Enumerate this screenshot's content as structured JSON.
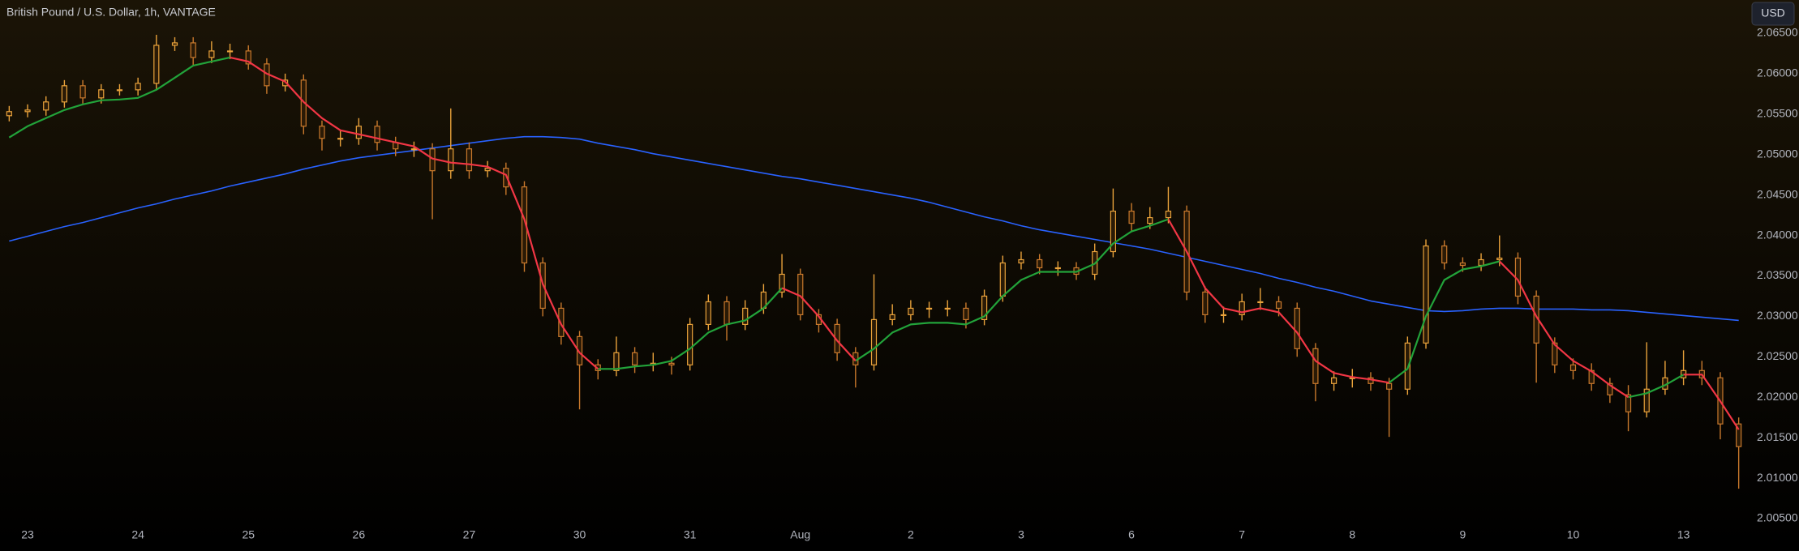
{
  "chart_data": {
    "type": "candlestick",
    "title": "British Pound / U.S. Dollar, 1h, VANTAGE",
    "currency_button": "USD",
    "categories": [
      null,
      "23",
      null,
      null,
      null,
      null,
      null,
      "24",
      null,
      null,
      null,
      null,
      null,
      "25",
      null,
      null,
      null,
      null,
      null,
      "26",
      null,
      null,
      null,
      null,
      null,
      "27",
      null,
      null,
      null,
      null,
      null,
      "30",
      null,
      null,
      null,
      null,
      null,
      "31",
      null,
      null,
      null,
      null,
      null,
      "Aug",
      null,
      null,
      null,
      null,
      null,
      "2",
      null,
      null,
      null,
      null,
      null,
      "3",
      null,
      null,
      null,
      null,
      null,
      "6",
      null,
      null,
      null,
      null,
      null,
      "7",
      null,
      null,
      null,
      null,
      null,
      "8",
      null,
      null,
      null,
      null,
      null,
      "9",
      null,
      null,
      null,
      null,
      null,
      "10",
      null,
      null,
      null,
      null,
      null,
      "13",
      null,
      null,
      null
    ],
    "open": [
      2.0548,
      2.0553,
      2.0555,
      2.0565,
      2.0585,
      2.057,
      2.058,
      2.058,
      2.0588,
      2.0635,
      2.0638,
      2.062,
      2.0628,
      2.0628,
      2.0612,
      2.0585,
      2.0592,
      2.0535,
      2.052,
      2.052,
      2.0535,
      2.0515,
      2.0507,
      2.0507,
      2.048,
      2.0507,
      2.048,
      2.0483,
      2.046,
      2.0366,
      2.031,
      2.0275,
      2.024,
      2.0233,
      2.0255,
      2.024,
      2.0242,
      2.024,
      2.029,
      2.0318,
      2.029,
      2.031,
      2.033,
      2.0352,
      2.0302,
      2.029,
      2.0255,
      2.024,
      2.0296,
      2.0302,
      2.031,
      2.031,
      2.031,
      2.0296,
      2.0325,
      2.0366,
      2.037,
      2.036,
      2.036,
      2.0352,
      2.038,
      2.043,
      2.0415,
      2.0422,
      2.043,
      2.033,
      2.0302,
      2.0302,
      2.0318,
      2.0318,
      2.031,
      2.026,
      2.0217,
      2.0224,
      2.0224,
      2.0217,
      2.021,
      2.0267,
      2.0387,
      2.0366,
      2.0363,
      2.037,
      2.0372,
      2.0325,
      2.0267,
      2.024,
      2.0233,
      2.0217,
      2.0203,
      2.0182,
      2.021,
      2.0224,
      2.0233,
      2.0224,
      2.0167
    ],
    "high": [
      2.056,
      2.0562,
      2.0572,
      2.0592,
      2.0592,
      2.0587,
      2.0587,
      2.0595,
      2.0648,
      2.0645,
      2.0645,
      2.064,
      2.0637,
      2.0635,
      2.0619,
      2.06,
      2.0599,
      2.0542,
      2.053,
      2.0545,
      2.0542,
      2.0522,
      2.0516,
      2.0514,
      2.0557,
      2.0515,
      2.0492,
      2.049,
      2.0467,
      2.0373,
      2.0317,
      2.0282,
      2.0247,
      2.0275,
      2.0262,
      2.0255,
      2.025,
      2.0298,
      2.0327,
      2.0325,
      2.032,
      2.034,
      2.0377,
      2.0359,
      2.0309,
      2.0297,
      2.0262,
      2.0352,
      2.0315,
      2.032,
      2.0318,
      2.032,
      2.0317,
      2.0333,
      2.0375,
      2.038,
      2.0377,
      2.0368,
      2.0367,
      2.039,
      2.0458,
      2.044,
      2.0435,
      2.046,
      2.0437,
      2.0337,
      2.0312,
      2.0328,
      2.0335,
      2.0325,
      2.0317,
      2.0267,
      2.0232,
      2.0235,
      2.0231,
      2.0224,
      2.0275,
      2.0395,
      2.0394,
      2.0373,
      2.0378,
      2.04,
      2.0379,
      2.0332,
      2.0274,
      2.0248,
      2.0242,
      2.0224,
      2.0215,
      2.0268,
      2.0245,
      2.0258,
      2.0245,
      2.0231,
      2.0175
    ],
    "low": [
      2.0541,
      2.0546,
      2.0548,
      2.0558,
      2.0563,
      2.0563,
      2.0573,
      2.0573,
      2.0581,
      2.0628,
      2.061,
      2.0613,
      2.0618,
      2.0605,
      2.0575,
      2.0578,
      2.0525,
      2.0505,
      2.051,
      2.0512,
      2.0505,
      2.0498,
      2.0497,
      2.042,
      2.047,
      2.047,
      2.0472,
      2.045,
      2.0355,
      2.03,
      2.0265,
      2.0185,
      2.0222,
      2.0226,
      2.023,
      2.0232,
      2.0228,
      2.0233,
      2.0283,
      2.027,
      2.0283,
      2.0303,
      2.0323,
      2.0295,
      2.028,
      2.0245,
      2.0212,
      2.0233,
      2.0289,
      2.0295,
      2.0298,
      2.03,
      2.0285,
      2.0289,
      2.0318,
      2.0358,
      2.0352,
      2.035,
      2.0345,
      2.0345,
      2.0373,
      2.0405,
      2.0408,
      2.0415,
      2.032,
      2.0292,
      2.0292,
      2.0295,
      2.0308,
      2.03,
      2.025,
      2.0195,
      2.0208,
      2.0212,
      2.0208,
      2.0151,
      2.0203,
      2.026,
      2.0358,
      2.0355,
      2.0356,
      2.0362,
      2.0315,
      2.0218,
      2.023,
      2.0222,
      2.0208,
      2.0193,
      2.0158,
      2.0175,
      2.0203,
      2.0215,
      2.0215,
      2.0148,
      2.0087
    ],
    "close": [
      2.0553,
      2.0555,
      2.0565,
      2.0585,
      2.057,
      2.058,
      2.058,
      2.0588,
      2.0635,
      2.0638,
      2.062,
      2.0628,
      2.0628,
      2.0612,
      2.0585,
      2.0592,
      2.0535,
      2.052,
      2.052,
      2.0535,
      2.0515,
      2.0507,
      2.0507,
      2.048,
      2.0507,
      2.048,
      2.0483,
      2.046,
      2.0366,
      2.031,
      2.0275,
      2.024,
      2.0233,
      2.0255,
      2.024,
      2.0242,
      2.024,
      2.029,
      2.0318,
      2.029,
      2.031,
      2.033,
      2.0352,
      2.0302,
      2.029,
      2.0255,
      2.024,
      2.0296,
      2.0302,
      2.031,
      2.031,
      2.031,
      2.0296,
      2.0325,
      2.0366,
      2.037,
      2.036,
      2.036,
      2.0352,
      2.038,
      2.043,
      2.0415,
      2.0422,
      2.043,
      2.033,
      2.0302,
      2.0302,
      2.0318,
      2.0318,
      2.031,
      2.026,
      2.0217,
      2.0224,
      2.0224,
      2.0217,
      2.021,
      2.0267,
      2.0387,
      2.0366,
      2.0363,
      2.037,
      2.0372,
      2.0325,
      2.0267,
      2.024,
      2.0233,
      2.0217,
      2.0203,
      2.0182,
      2.021,
      2.0224,
      2.0233,
      2.0224,
      2.0167,
      2.0139
    ],
    "up_color": "#e9a23b",
    "down_color": "#c9792c",
    "lines": [
      {
        "color": "#2962ff",
        "values": [
          2.0393,
          2.0399,
          2.0405,
          2.0411,
          2.0416,
          2.0422,
          2.0428,
          2.0434,
          2.0439,
          2.0445,
          2.045,
          2.0455,
          2.0461,
          2.0466,
          2.0471,
          2.0476,
          2.0482,
          2.0487,
          2.0492,
          2.0496,
          2.0499,
          2.0502,
          2.0505,
          2.0508,
          2.0511,
          2.0514,
          2.0517,
          2.052,
          2.0522,
          2.0522,
          2.0521,
          2.0519,
          2.0514,
          2.051,
          2.0506,
          2.0501,
          2.0497,
          2.0493,
          2.0489,
          2.0485,
          2.0481,
          2.0477,
          2.0473,
          2.047,
          2.0466,
          2.0462,
          2.0458,
          2.0454,
          2.045,
          2.0446,
          2.0441,
          2.0435,
          2.0429,
          2.0423,
          2.0418,
          2.0412,
          2.0407,
          2.0403,
          2.0399,
          2.0395,
          2.0391,
          2.0387,
          2.0383,
          2.0378,
          2.0373,
          2.0368,
          2.0363,
          2.0358,
          2.0353,
          2.0347,
          2.0342,
          2.0336,
          2.0331,
          2.0325,
          2.0319,
          2.0315,
          2.0311,
          2.0307,
          2.0306,
          2.0307,
          2.0309,
          2.031,
          2.031,
          2.0309,
          2.0309,
          2.0309,
          2.0308,
          2.0308,
          2.0307,
          2.0305,
          2.0303,
          2.0301,
          2.0299,
          2.0297,
          2.0295
        ]
      },
      {
        "color": "#22a33a",
        "values": [
          2.0521,
          2.0535,
          2.0545,
          2.0555,
          2.0562,
          2.0567,
          2.0568,
          2.057,
          2.058,
          2.0595,
          2.061,
          2.0615,
          2.062,
          null,
          null,
          null,
          null,
          null,
          null,
          null,
          null,
          null,
          null,
          null,
          null,
          null,
          null,
          null,
          null,
          null,
          null,
          null,
          2.0235,
          2.0235,
          2.0238,
          2.024,
          2.0245,
          2.026,
          2.028,
          2.029,
          2.0295,
          2.031,
          2.0335,
          null,
          null,
          null,
          2.0245,
          2.026,
          2.028,
          2.029,
          2.0292,
          2.0292,
          2.029,
          2.03,
          2.0325,
          2.0345,
          2.0355,
          2.0355,
          2.0355,
          2.0365,
          2.039,
          2.0405,
          2.0412,
          2.042,
          null,
          null,
          null,
          null,
          null,
          null,
          null,
          null,
          null,
          null,
          null,
          2.0218,
          2.0235,
          2.03,
          2.0345,
          2.0358,
          2.0362,
          2.0368,
          null,
          null,
          null,
          null,
          null,
          null,
          2.02,
          2.0205,
          2.0215,
          2.0228,
          null,
          null,
          null
        ]
      },
      {
        "color": "#f23645",
        "values": [
          null,
          null,
          null,
          null,
          null,
          null,
          null,
          null,
          null,
          null,
          null,
          null,
          2.062,
          2.0615,
          2.06,
          2.059,
          2.0565,
          2.0545,
          2.053,
          2.0525,
          2.052,
          2.0515,
          2.051,
          2.0495,
          2.049,
          2.0488,
          2.0485,
          2.0475,
          2.042,
          2.034,
          2.029,
          2.0255,
          2.0235,
          null,
          null,
          null,
          null,
          null,
          null,
          null,
          null,
          null,
          2.0335,
          2.0325,
          2.03,
          2.027,
          2.0245,
          null,
          null,
          null,
          null,
          null,
          null,
          null,
          null,
          null,
          null,
          null,
          null,
          null,
          null,
          null,
          null,
          2.042,
          2.038,
          2.0335,
          2.031,
          2.0305,
          2.031,
          2.0305,
          2.028,
          2.0245,
          2.023,
          2.0225,
          2.0222,
          2.0218,
          null,
          null,
          null,
          null,
          null,
          2.0368,
          2.0345,
          2.03,
          2.0265,
          2.0245,
          2.0232,
          2.0215,
          2.02,
          null,
          null,
          2.0228,
          2.0228,
          2.0195,
          2.016
        ]
      }
    ],
    "ylim": [
      2.0037,
      2.0691
    ],
    "yticks": [
      {
        "value": 2.065,
        "label": "2.06500"
      },
      {
        "value": 2.06,
        "label": "2.06000"
      },
      {
        "value": 2.055,
        "label": "2.05500"
      },
      {
        "value": 2.05,
        "label": "2.05000"
      },
      {
        "value": 2.045,
        "label": "2.04500"
      },
      {
        "value": 2.04,
        "label": "2.04000"
      },
      {
        "value": 2.035,
        "label": "2.03500"
      },
      {
        "value": 2.03,
        "label": "2.03000"
      },
      {
        "value": 2.025,
        "label": "2.02500"
      },
      {
        "value": 2.02,
        "label": "2.02000"
      },
      {
        "value": 2.015,
        "label": "2.01500"
      },
      {
        "value": 2.01,
        "label": "2.01000"
      },
      {
        "value": 2.005,
        "label": "2.00500"
      }
    ],
    "grid": false
  }
}
